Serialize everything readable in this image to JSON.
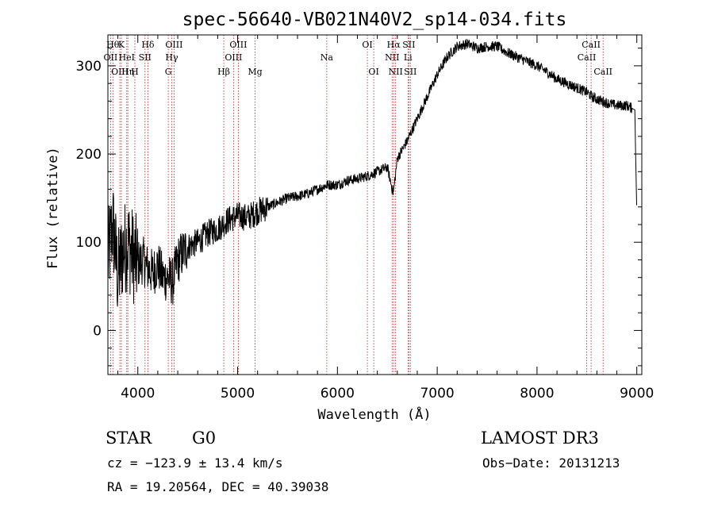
{
  "chart_data": {
    "type": "line",
    "title": "spec-56640-VB021N40V2_sp14-034.fits",
    "xlabel": "Wavelength (Å)",
    "ylabel": "Flux (relative)",
    "xlim": [
      3700,
      9050
    ],
    "ylim": [
      -50,
      335
    ],
    "x_ticks": [
      4000,
      5000,
      6000,
      7000,
      8000,
      9000
    ],
    "y_ticks": [
      0,
      100,
      200,
      300
    ],
    "series": [
      {
        "name": "flux",
        "x": [
          3700,
          3750,
          3800,
          3850,
          3900,
          3950,
          4000,
          4050,
          4100,
          4150,
          4200,
          4250,
          4300,
          4350,
          4400,
          4500,
          4600,
          4700,
          4800,
          4900,
          5000,
          5100,
          5200,
          5300,
          5400,
          5500,
          5600,
          5700,
          5800,
          5900,
          6000,
          6100,
          6200,
          6300,
          6400,
          6500,
          6560,
          6600,
          6700,
          6800,
          6900,
          7000,
          7100,
          7200,
          7300,
          7400,
          7500,
          7600,
          7700,
          7800,
          7900,
          8000,
          8100,
          8200,
          8300,
          8400,
          8500,
          8550,
          8600,
          8700,
          8800,
          8900,
          8980,
          9000
        ],
        "y": [
          80,
          120,
          60,
          90,
          100,
          85,
          75,
          80,
          70,
          65,
          75,
          60,
          60,
          55,
          80,
          95,
          100,
          110,
          115,
          125,
          130,
          128,
          135,
          140,
          145,
          150,
          152,
          155,
          160,
          165,
          165,
          170,
          172,
          175,
          180,
          185,
          155,
          195,
          215,
          240,
          265,
          290,
          310,
          322,
          325,
          320,
          322,
          322,
          315,
          310,
          305,
          300,
          293,
          285,
          280,
          275,
          270,
          265,
          262,
          258,
          255,
          255,
          250,
          130
        ]
      }
    ],
    "line_markers": [
      {
        "wavelength": 3750,
        "label": "Hθ",
        "row": 1
      },
      {
        "wavelength": 3727,
        "label": "OII",
        "row": 2
      },
      {
        "wavelength": 3820,
        "label": "OIII",
        "row": 3
      },
      {
        "wavelength": 3835,
        "label": "K",
        "row": 1
      },
      {
        "wavelength": 3889,
        "label": "HeI",
        "row": 2
      },
      {
        "wavelength": 3900,
        "label": "Hη",
        "row": 3
      },
      {
        "wavelength": 3970,
        "label": "H",
        "row": 3
      },
      {
        "wavelength": 4101,
        "label": "Hδ",
        "row": 1
      },
      {
        "wavelength": 4072,
        "label": "SII",
        "row": 2
      },
      {
        "wavelength": 4340,
        "label": "Hγ",
        "row": 2
      },
      {
        "wavelength": 4363,
        "label": "OIII",
        "row": 1
      },
      {
        "wavelength": 4305,
        "label": "G",
        "row": 3
      },
      {
        "wavelength": 4861,
        "label": "Hβ",
        "row": 3
      },
      {
        "wavelength": 4959,
        "label": "OIII",
        "row": 2
      },
      {
        "wavelength": 5007,
        "label": "OIII",
        "row": 1
      },
      {
        "wavelength": 5175,
        "label": "Mg",
        "row": 3
      },
      {
        "wavelength": 5893,
        "label": "Na",
        "row": 2
      },
      {
        "wavelength": 6300,
        "label": "OI",
        "row": 1
      },
      {
        "wavelength": 6364,
        "label": "OI",
        "row": 3
      },
      {
        "wavelength": 6548,
        "label": "NII",
        "row": 2
      },
      {
        "wavelength": 6563,
        "label": "Hα",
        "row": 1
      },
      {
        "wavelength": 6583,
        "label": "NII",
        "row": 3
      },
      {
        "wavelength": 6707,
        "label": "Li",
        "row": 2
      },
      {
        "wavelength": 6716,
        "label": "SII",
        "row": 1
      },
      {
        "wavelength": 6731,
        "label": "SII",
        "row": 3
      },
      {
        "wavelength": 8498,
        "label": "CaII",
        "row": 2
      },
      {
        "wavelength": 8542,
        "label": "CaII",
        "row": 1
      },
      {
        "wavelength": 8662,
        "label": "CaII",
        "row": 3
      }
    ]
  },
  "info": {
    "object_class": "STAR",
    "subclass": "G0",
    "survey": "LAMOST DR3",
    "redshift": "cz = −123.9 ± 13.4 km/s",
    "obs_date": "Obs−Date: 20131213",
    "coords": "RA =  19.20564, DEC =  40.39038"
  }
}
